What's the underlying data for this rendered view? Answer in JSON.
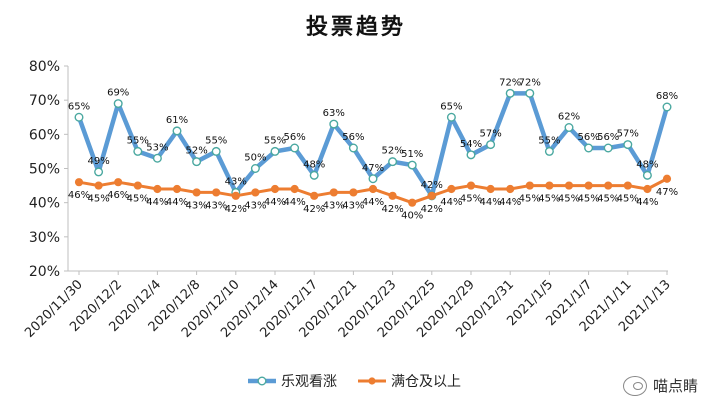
{
  "chart_data": {
    "type": "line",
    "title": "投票趋势",
    "xlabel": "",
    "ylabel": "",
    "ylim": [
      20,
      80
    ],
    "yticks": [
      "20%",
      "30%",
      "40%",
      "50%",
      "60%",
      "70%",
      "80%"
    ],
    "grid": false,
    "legend": "bottom",
    "x_tick_labels": [
      "2020/11/30",
      "2020/12/2",
      "2020/12/4",
      "2020/12/8",
      "2020/12/10",
      "2020/12/14",
      "2020/12/17",
      "2020/12/21",
      "2020/12/23",
      "2020/12/25",
      "2020/12/29",
      "2020/12/31",
      "2021/1/5",
      "2021/1/7",
      "2021/1/11",
      "2021/1/13"
    ],
    "x_tick_every": 2,
    "series": [
      {
        "name": "乐观看涨",
        "color": "#5B9BD5",
        "values": [
          65,
          49,
          69,
          55,
          53,
          61,
          52,
          55,
          43,
          50,
          55,
          56,
          48,
          63,
          56,
          47,
          52,
          51,
          42,
          65,
          54,
          57,
          72,
          72,
          55,
          62,
          56,
          56,
          57,
          48,
          68
        ],
        "labels": [
          "65%",
          "49%",
          "69%",
          "55%",
          "53%",
          "61%",
          "52%",
          "55%",
          "43%",
          "50%",
          "55%",
          "56%",
          "48%",
          "63%",
          "56%",
          "47%",
          "52%",
          "51%",
          "42%",
          "65%",
          "54%",
          "57%",
          "72%",
          "72%",
          "55%",
          "62%",
          "56%",
          "56%",
          "57%",
          "48%",
          "68%"
        ]
      },
      {
        "name": "满仓及以上",
        "color": "#ED7D31",
        "values": [
          46,
          45,
          46,
          45,
          44,
          44,
          43,
          43,
          42,
          43,
          44,
          44,
          42,
          43,
          43,
          44,
          42,
          40,
          42,
          44,
          45,
          44,
          44,
          45,
          45,
          45,
          45,
          45,
          45,
          44,
          47
        ],
        "labels": [
          "46%",
          "45%",
          "46%",
          "45%",
          "44%",
          "44%",
          "43%",
          "43%",
          "42%",
          "43%",
          "44%",
          "44%",
          "42%",
          "43%",
          "43%",
          "44%",
          "42%",
          "40%",
          "42%",
          "44%",
          "45%",
          "44%",
          "44%",
          "45%",
          "45%",
          "45%",
          "45%",
          "45%",
          "45%",
          "44%",
          "47%"
        ]
      }
    ]
  },
  "watermark": {
    "text": "喵点睛",
    "icon": "wechat-icon"
  }
}
